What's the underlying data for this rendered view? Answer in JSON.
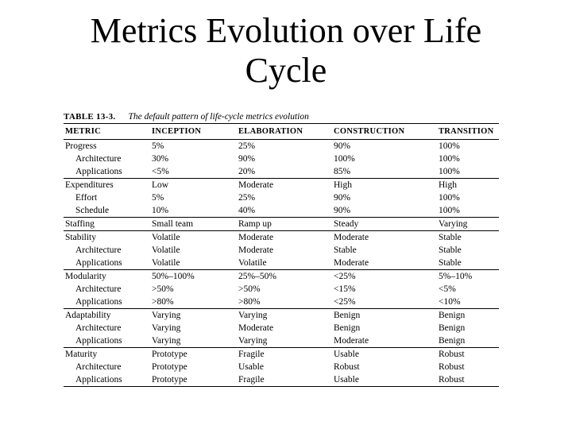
{
  "slide": {
    "title_line1": "Metrics Evolution over Life",
    "title_line2": "Cycle"
  },
  "table": {
    "caption_number": "TABLE 13-3.",
    "caption_text": "The default pattern of life-cycle metrics evolution",
    "headers": [
      "METRIC",
      "INCEPTION",
      "ELABORATION",
      "CONSTRUCTION",
      "TRANSITION"
    ],
    "rows": [
      {
        "group_start": false,
        "sub": false,
        "cells": [
          "Progress",
          "5%",
          "25%",
          "90%",
          "100%"
        ]
      },
      {
        "group_start": false,
        "sub": true,
        "cells": [
          "Architecture",
          "30%",
          "90%",
          "100%",
          "100%"
        ]
      },
      {
        "group_start": false,
        "sub": true,
        "cells": [
          "Applications",
          "<5%",
          "20%",
          "85%",
          "100%"
        ]
      },
      {
        "group_start": true,
        "sub": false,
        "cells": [
          "Expenditures",
          "Low",
          "Moderate",
          "High",
          "High"
        ]
      },
      {
        "group_start": false,
        "sub": true,
        "cells": [
          "Effort",
          "5%",
          "25%",
          "90%",
          "100%"
        ]
      },
      {
        "group_start": false,
        "sub": true,
        "cells": [
          "Schedule",
          "10%",
          "40%",
          "90%",
          "100%"
        ]
      },
      {
        "group_start": true,
        "sub": false,
        "cells": [
          "Staffing",
          "Small team",
          "Ramp up",
          "Steady",
          "Varying"
        ]
      },
      {
        "group_start": true,
        "sub": false,
        "cells": [
          "Stability",
          "Volatile",
          "Moderate",
          "Moderate",
          "Stable"
        ]
      },
      {
        "group_start": false,
        "sub": true,
        "cells": [
          "Architecture",
          "Volatile",
          "Moderate",
          "Stable",
          "Stable"
        ]
      },
      {
        "group_start": false,
        "sub": true,
        "cells": [
          "Applications",
          "Volatile",
          "Volatile",
          "Moderate",
          "Stable"
        ]
      },
      {
        "group_start": true,
        "sub": false,
        "cells": [
          "Modularity",
          "50%–100%",
          "25%–50%",
          "<25%",
          "5%–10%"
        ]
      },
      {
        "group_start": false,
        "sub": true,
        "cells": [
          "Architecture",
          ">50%",
          ">50%",
          "<15%",
          "<5%"
        ]
      },
      {
        "group_start": false,
        "sub": true,
        "cells": [
          "Applications",
          ">80%",
          ">80%",
          "<25%",
          "<10%"
        ]
      },
      {
        "group_start": true,
        "sub": false,
        "cells": [
          "Adaptability",
          "Varying",
          "Varying",
          "Benign",
          "Benign"
        ]
      },
      {
        "group_start": false,
        "sub": true,
        "cells": [
          "Architecture",
          "Varying",
          "Moderate",
          "Benign",
          "Benign"
        ]
      },
      {
        "group_start": false,
        "sub": true,
        "cells": [
          "Applications",
          "Varying",
          "Varying",
          "Moderate",
          "Benign"
        ]
      },
      {
        "group_start": true,
        "sub": false,
        "cells": [
          "Maturity",
          "Prototype",
          "Fragile",
          "Usable",
          "Robust"
        ]
      },
      {
        "group_start": false,
        "sub": true,
        "cells": [
          "Architecture",
          "Prototype",
          "Usable",
          "Robust",
          "Robust"
        ]
      },
      {
        "group_start": false,
        "sub": true,
        "cells": [
          "Applications",
          "Prototype",
          "Fragile",
          "Usable",
          "Robust"
        ]
      }
    ]
  }
}
